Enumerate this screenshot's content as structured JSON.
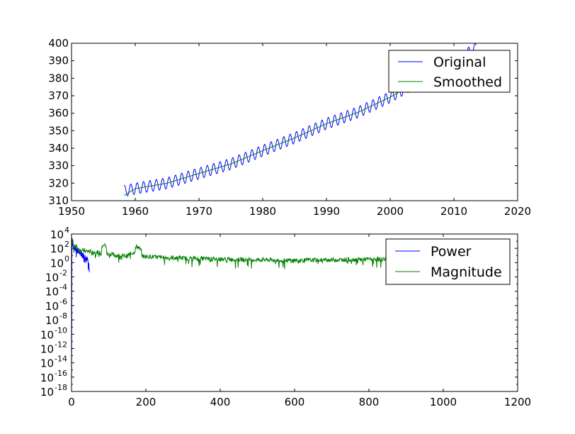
{
  "chart_data": [
    {
      "type": "line",
      "title": "",
      "xlabel": "",
      "ylabel": "",
      "xlim": [
        1950,
        2020
      ],
      "ylim": [
        310,
        400
      ],
      "x_ticks": [
        1950,
        1960,
        1970,
        1980,
        1990,
        2000,
        2010,
        2020
      ],
      "y_ticks": [
        310,
        320,
        330,
        340,
        350,
        360,
        370,
        380,
        390,
        400
      ],
      "x_tick_labels": [
        "1950",
        "1960",
        "1970",
        "1980",
        "1990",
        "2000",
        "2010",
        "2020"
      ],
      "y_tick_labels": [
        "310",
        "320",
        "330",
        "340",
        "350",
        "360",
        "370",
        "380",
        "390",
        "400"
      ],
      "grid": false,
      "legend_position": "top-right",
      "series": [
        {
          "name": "Original",
          "color": "#0000ff",
          "x": [
            1958.25,
            1960,
            1965,
            1970,
            1975,
            1980,
            1985,
            1990,
            1995,
            2000,
            2005,
            2010,
            2013.5
          ],
          "y": [
            315.5,
            316.9,
            320.0,
            325.6,
            331.0,
            338.6,
            345.9,
            354.0,
            360.6,
            369.2,
            379.5,
            389.6,
            397.2
          ],
          "seasonal_amplitude": 3.2
        },
        {
          "name": "Smoothed",
          "color": "#008000",
          "x": [
            1958.25,
            1960,
            1965,
            1970,
            1975,
            1980,
            1985,
            1990,
            1995,
            2000,
            2005,
            2010,
            2013.5
          ],
          "y": [
            313.0,
            316.9,
            320.0,
            325.6,
            331.0,
            338.6,
            345.9,
            354.0,
            360.6,
            369.2,
            379.5,
            389.6,
            396.2
          ]
        }
      ]
    },
    {
      "type": "line",
      "title": "",
      "xlabel": "",
      "ylabel": "",
      "xlim": [
        0,
        1200
      ],
      "ylim": [
        1e-18,
        10000
      ],
      "yscale": "log",
      "x_ticks": [
        0,
        200,
        400,
        600,
        800,
        1000,
        1200
      ],
      "x_tick_labels": [
        "0",
        "200",
        "400",
        "600",
        "800",
        "1000",
        "1200"
      ],
      "y_tick_exponents": [
        4,
        2,
        0,
        -2,
        -4,
        -6,
        -8,
        -10,
        -12,
        -14,
        -16,
        -18
      ],
      "y_tick_base": "10",
      "grid": false,
      "legend_position": "top-right",
      "series": [
        {
          "name": "Power",
          "color": "#0000ff",
          "x": [
            0,
            0.5,
            1,
            2,
            5,
            10,
            15,
            20,
            25,
            30,
            35,
            40,
            45,
            48
          ],
          "y": [
            1e-17,
            1e-09,
            3000,
            600,
            200,
            80,
            50,
            30,
            20,
            12,
            8,
            4,
            1,
            0.05
          ]
        },
        {
          "name": "Magnitude",
          "color": "#008000",
          "x": [
            0,
            5,
            20,
            40,
            60,
            80,
            86,
            95,
            120,
            150,
            170,
            175,
            190,
            250,
            400,
            600,
            800,
            850
          ],
          "y": [
            3000,
            300,
            60,
            40,
            30,
            20,
            500,
            20,
            10,
            8,
            30,
            200,
            8,
            5,
            3,
            2,
            3,
            3
          ]
        }
      ]
    }
  ]
}
